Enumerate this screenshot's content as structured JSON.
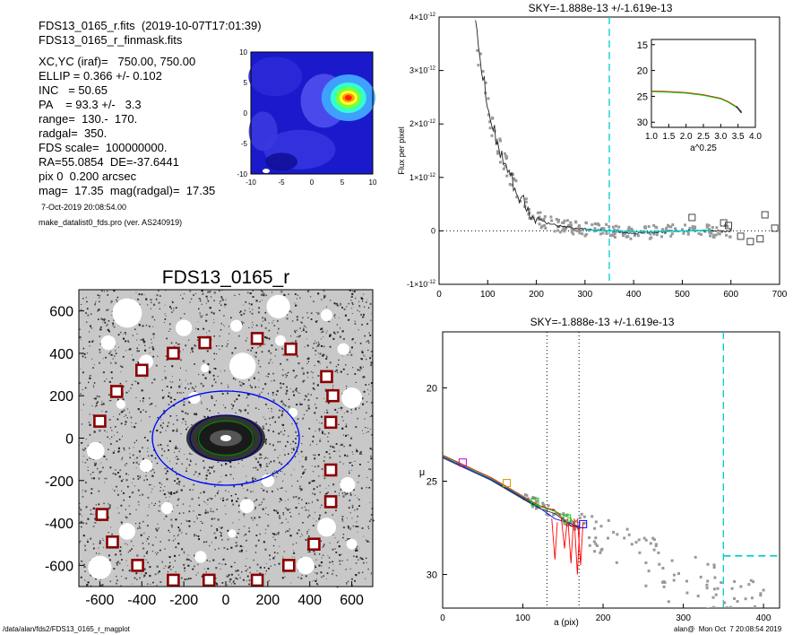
{
  "header": {
    "file_line": "FDS13_0165_r.fits  (2019-10-07T17:01:39)",
    "mask_line": "FDS13_0165_r_finmask.fits",
    "params": [
      "XC,YC (iraf)=   750.00, 750.00",
      "ELLIP = 0.366 +/- 0.102",
      "INC   = 50.65",
      "PA    = 93.3 +/-   3.3",
      "range=  130.-  170.",
      "radgal=  350.",
      "FDS scale=  100000000.",
      "RA=55.0854  DE=-37.6441",
      "pix 0  0.200 arcsec",
      "mag=  17.35  mag(radgal)=  17.35"
    ],
    "date_line": "7-Oct-2019 20:08:54.00",
    "program_line": "make_datalist0_fds.pro (ver. AS240919)"
  },
  "footer": {
    "path": "/data/alan/fds2/FDS13_0165_r_magplot",
    "user_stamp": "alan@  Mon Oct  7 20:08:54 2019"
  },
  "colors": {
    "box_marker": "#8b0000",
    "sky_line": "#00cccc",
    "fit_red": "#ff0000",
    "fit_green": "#00cc00",
    "fit_blue": "#0000ff",
    "data_grey": "#999999"
  },
  "chart_data": [
    {
      "id": "contour",
      "type": "heatmap",
      "title": "",
      "xlim": [
        -10,
        10
      ],
      "ylim": [
        -10,
        10
      ],
      "xticks": [
        "-10",
        "-5",
        "0",
        "5",
        "10"
      ],
      "yticks": [
        "10",
        "5",
        "0",
        "-5",
        "-10"
      ],
      "peak": {
        "x": 6,
        "y": 2.5
      }
    },
    {
      "id": "image",
      "type": "scatter",
      "title": "FDS13_0165_r",
      "xlim": [
        -700,
        700
      ],
      "ylim": [
        -700,
        700
      ],
      "xticks": [
        "-600",
        "-400",
        "-200",
        "0",
        "200",
        "400",
        "600"
      ],
      "yticks": [
        "600",
        "400",
        "200",
        "0",
        "-200",
        "-400",
        "-600"
      ],
      "sky_boxes": [
        {
          "x": 150,
          "y": 470
        },
        {
          "x": -100,
          "y": 450
        },
        {
          "x": -250,
          "y": 400
        },
        {
          "x": 310,
          "y": 420
        },
        {
          "x": -400,
          "y": 320
        },
        {
          "x": 480,
          "y": 290
        },
        {
          "x": -520,
          "y": 220
        },
        {
          "x": 510,
          "y": 200
        },
        {
          "x": -600,
          "y": 80
        },
        {
          "x": 500,
          "y": 75
        },
        {
          "x": 500,
          "y": -150
        },
        {
          "x": 500,
          "y": -300
        },
        {
          "x": -590,
          "y": -360
        },
        {
          "x": -540,
          "y": -490
        },
        {
          "x": 420,
          "y": -500
        },
        {
          "x": -420,
          "y": -600
        },
        {
          "x": 300,
          "y": -600
        },
        {
          "x": -250,
          "y": -670
        },
        {
          "x": -80,
          "y": -670
        },
        {
          "x": 150,
          "y": -670
        }
      ],
      "ellipses": [
        {
          "a": 350,
          "b": 222,
          "color": "#00cccc",
          "dash": true
        },
        {
          "a": 350,
          "b": 222,
          "color": "#0000ff",
          "dash": false
        },
        {
          "a": 170,
          "b": 108,
          "color": "#000080",
          "dash": false
        },
        {
          "a": 130,
          "b": 82,
          "color": "#008000",
          "dash": false
        }
      ]
    },
    {
      "id": "sky",
      "type": "line",
      "title": "SKY=-1.888e-13 +/-1.619e-13",
      "xlabel": "",
      "ylabel": "Flux per pixel",
      "xlim": [
        0,
        700
      ],
      "ylim": [
        -1e-12,
        4e-12
      ],
      "xticks": [
        "0",
        "100",
        "200",
        "300",
        "400",
        "500",
        "600",
        "700"
      ],
      "yticks": [
        {
          "v": 4e-12,
          "m": "4",
          "e": "-12"
        },
        {
          "v": 3e-12,
          "m": "3",
          "e": "-12"
        },
        {
          "v": 2e-12,
          "m": "2",
          "e": "-12"
        },
        {
          "v": 1e-12,
          "m": "1",
          "e": "-12"
        },
        {
          "v": 0,
          "m": "0",
          "e": ""
        },
        {
          "v": -1e-12,
          "m": "-1",
          "e": "-12"
        }
      ],
      "sky_radius": 350,
      "profile_x": [
        75,
        80,
        90,
        100,
        110,
        120,
        130,
        140,
        150,
        160,
        170,
        180,
        190,
        200,
        220,
        240,
        260,
        280,
        300,
        320,
        340,
        360,
        380,
        400,
        420,
        440,
        460,
        480,
        500,
        520,
        540,
        560,
        580,
        600
      ],
      "profile_y": [
        4e-12,
        3.5e-12,
        2.9e-12,
        2.4e-12,
        2e-12,
        1.65e-12,
        1.4e-12,
        1.15e-12,
        9.5e-13,
        7.5e-13,
        6e-13,
        4.5e-13,
        3.5e-13,
        2.5e-13,
        1.5e-13,
        1e-13,
        7e-14,
        5e-14,
        3e-14,
        2e-14,
        1e-14,
        0.0,
        -2e-14,
        -4e-14,
        -3e-14,
        -2e-14,
        -2e-14,
        0.0,
        0.0,
        0.0,
        1e-14,
        0.0,
        0.0,
        0.0
      ],
      "box_points": [
        {
          "x": 520,
          "y": 2.5e-13
        },
        {
          "x": 585,
          "y": 1.5e-13
        },
        {
          "x": 595,
          "y": 1e-13
        },
        {
          "x": 620,
          "y": -1e-13
        },
        {
          "x": 640,
          "y": -2e-13
        },
        {
          "x": 660,
          "y": -1.5e-13
        },
        {
          "x": 670,
          "y": 3e-13
        },
        {
          "x": 690,
          "y": 5e-14
        }
      ]
    },
    {
      "id": "inset",
      "type": "line",
      "title": "",
      "xlabel": "a^0.25",
      "ylabel": "",
      "xlim": [
        1.0,
        4.0
      ],
      "ylim": [
        14,
        31
      ],
      "xticks": [
        "1.0",
        "1.5",
        "2.0",
        "2.5",
        "3.0",
        "3.5",
        "4.0"
      ],
      "yticks": [
        "15",
        "20",
        "25",
        "30"
      ],
      "x": [
        1.0,
        1.5,
        2.0,
        2.5,
        3.0,
        3.2,
        3.4,
        3.5,
        3.6
      ],
      "y": [
        24.0,
        24.1,
        24.3,
        24.7,
        25.4,
        26.0,
        26.8,
        27.3,
        28.0
      ]
    },
    {
      "id": "profile",
      "type": "scatter",
      "title": "SKY=-1.888e-13 +/-1.619e-13",
      "xlabel": "a (pix)",
      "ylabel": "μ",
      "xlim": [
        0,
        420
      ],
      "ylim": [
        31.8,
        17.0
      ],
      "xticks": [
        "0",
        "100",
        "200",
        "300",
        "400"
      ],
      "yticks": [
        "20",
        "25",
        "30"
      ],
      "range_lines": [
        130,
        170
      ],
      "sky_radius": 350,
      "sky_level": 29.0,
      "fit_x": [
        0,
        20,
        40,
        60,
        80,
        100,
        120,
        140,
        160,
        170
      ],
      "fit_y": [
        23.6,
        24.0,
        24.4,
        24.8,
        25.3,
        25.8,
        26.3,
        26.8,
        27.2,
        27.4
      ],
      "markers": [
        {
          "x": 25,
          "y": 24.0,
          "color": "#cc00cc"
        },
        {
          "x": 80,
          "y": 25.1,
          "color": "#cc9900"
        },
        {
          "x": 115,
          "y": 26.1,
          "color": "#00cc00"
        },
        {
          "x": 155,
          "y": 27.0,
          "color": "#00cc00"
        },
        {
          "x": 175,
          "y": 27.3,
          "color": "#0000ff"
        }
      ]
    }
  ]
}
